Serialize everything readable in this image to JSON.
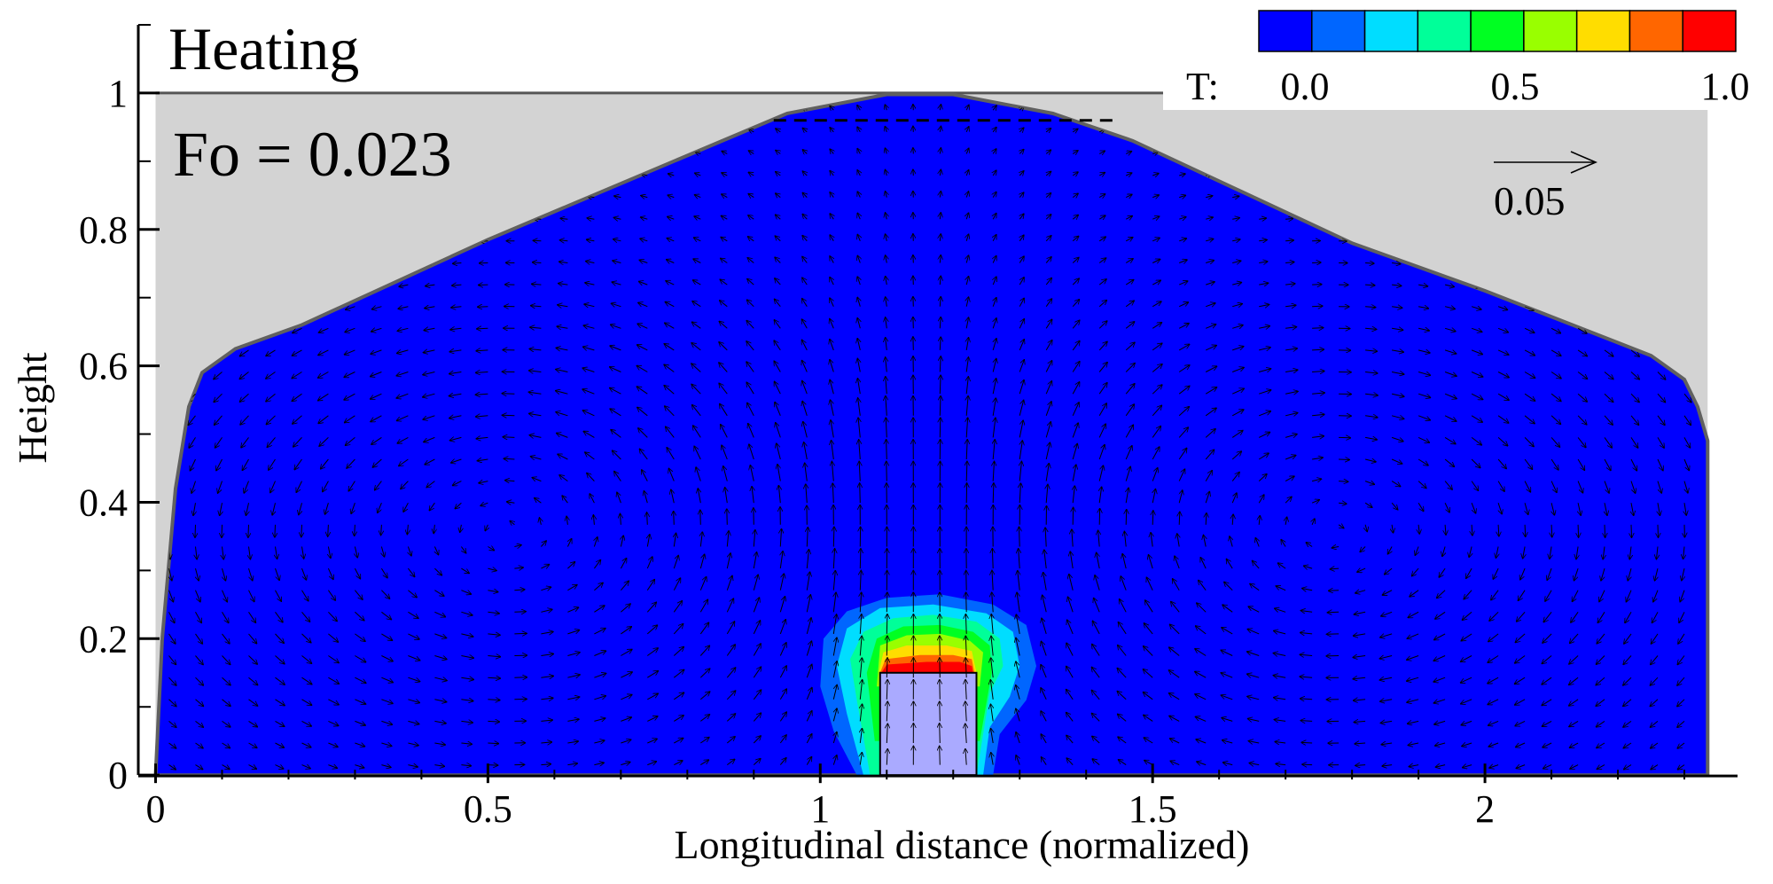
{
  "chart_data": {
    "type": "heatmap",
    "subtype": "temperature contour with velocity vectors",
    "title": "Heating",
    "annotation": "Fo = 0.023",
    "xlabel": "Longitudinal distance (normalized)",
    "ylabel": "Height",
    "xlim": [
      -0.01,
      2.38
    ],
    "ylim": [
      -0.005,
      1.1
    ],
    "x_ticks": [
      {
        "value": 0,
        "label": "0"
      },
      {
        "value": 0.5,
        "label": "0.5"
      },
      {
        "value": 1,
        "label": "1"
      },
      {
        "value": 1.5,
        "label": "1.5"
      },
      {
        "value": 2,
        "label": "2"
      }
    ],
    "y_ticks": [
      {
        "value": 0,
        "label": "0"
      },
      {
        "value": 0.2,
        "label": "0.2"
      },
      {
        "value": 0.4,
        "label": "0.4"
      },
      {
        "value": 0.6,
        "label": "0.6"
      },
      {
        "value": 0.8,
        "label": "0.8"
      },
      {
        "value": 1,
        "label": "1"
      }
    ],
    "grid": false,
    "colorbar": {
      "prefix": "T:",
      "min": 0.0,
      "max": 1.0,
      "tick_labels": [
        {
          "value": 0.0,
          "label": "0.0"
        },
        {
          "value": 0.5,
          "label": "0.5"
        },
        {
          "value": 1.0,
          "label": "1.0"
        }
      ],
      "colors": [
        "#0000ff",
        "#0066ff",
        "#00ddff",
        "#00ff99",
        "#00ff22",
        "#99ff00",
        "#ffdd00",
        "#ff6600",
        "#ff0000"
      ],
      "placement": "top-right"
    },
    "vector_reference": {
      "label": "0.05",
      "magnitude": 0.05
    },
    "domain_boundary": [
      [
        0.0,
        0.0
      ],
      [
        0.01,
        0.2
      ],
      [
        0.03,
        0.42
      ],
      [
        0.05,
        0.54
      ],
      [
        0.07,
        0.59
      ],
      [
        0.12,
        0.625
      ],
      [
        0.22,
        0.66
      ],
      [
        0.5,
        0.785
      ],
      [
        0.95,
        0.97
      ],
      [
        1.1,
        0.998
      ],
      [
        1.2,
        0.998
      ],
      [
        1.35,
        0.97
      ],
      [
        1.47,
        0.93
      ],
      [
        1.8,
        0.78
      ],
      [
        2.0,
        0.71
      ],
      [
        2.25,
        0.615
      ],
      [
        2.3,
        0.58
      ],
      [
        2.32,
        0.54
      ],
      [
        2.335,
        0.49
      ],
      [
        2.335,
        0.0
      ]
    ],
    "domain_top": 1.0,
    "top_dashed_line": {
      "x_start": 0.93,
      "x_end": 1.44,
      "y": 0.96
    },
    "heater": {
      "x0": 1.09,
      "x1": 1.235,
      "y0": 0,
      "y1": 0.15,
      "color": "#aaaaff"
    },
    "temperature_levels": [
      {
        "level": 0.11,
        "color": "#0066ff",
        "outline": [
          [
            1.055,
            0
          ],
          [
            1.02,
            0.065
          ],
          [
            1.0,
            0.13
          ],
          [
            1.005,
            0.2
          ],
          [
            1.04,
            0.24
          ],
          [
            1.1,
            0.26
          ],
          [
            1.18,
            0.265
          ],
          [
            1.26,
            0.25
          ],
          [
            1.31,
            0.22
          ],
          [
            1.325,
            0.16
          ],
          [
            1.31,
            0.11
          ],
          [
            1.27,
            0.06
          ],
          [
            1.26,
            0
          ]
        ]
      },
      {
        "level": 0.22,
        "color": "#00ddff",
        "outline": [
          [
            1.065,
            0
          ],
          [
            1.04,
            0.09
          ],
          [
            1.025,
            0.16
          ],
          [
            1.04,
            0.215
          ],
          [
            1.09,
            0.245
          ],
          [
            1.17,
            0.25
          ],
          [
            1.25,
            0.237
          ],
          [
            1.29,
            0.21
          ],
          [
            1.3,
            0.16
          ],
          [
            1.285,
            0.115
          ],
          [
            1.255,
            0.07
          ],
          [
            1.245,
            0
          ]
        ]
      },
      {
        "level": 0.33,
        "color": "#00ff99",
        "outline": [
          [
            1.075,
            0
          ],
          [
            1.055,
            0.11
          ],
          [
            1.045,
            0.17
          ],
          [
            1.065,
            0.21
          ],
          [
            1.11,
            0.23
          ],
          [
            1.17,
            0.235
          ],
          [
            1.235,
            0.225
          ],
          [
            1.27,
            0.2
          ],
          [
            1.275,
            0.16
          ],
          [
            1.255,
            0.12
          ],
          [
            1.235,
            0
          ]
        ]
      },
      {
        "level": 0.44,
        "color": "#00ff22",
        "outline": [
          [
            1.082,
            0.05
          ],
          [
            1.07,
            0.15
          ],
          [
            1.085,
            0.2
          ],
          [
            1.125,
            0.218
          ],
          [
            1.18,
            0.22
          ],
          [
            1.23,
            0.21
          ],
          [
            1.255,
            0.19
          ],
          [
            1.258,
            0.15
          ],
          [
            1.24,
            0.05
          ]
        ]
      },
      {
        "level": 0.55,
        "color": "#99ff00",
        "outline": [
          [
            1.085,
            0.13
          ],
          [
            1.09,
            0.19
          ],
          [
            1.13,
            0.205
          ],
          [
            1.18,
            0.207
          ],
          [
            1.225,
            0.197
          ],
          [
            1.245,
            0.18
          ],
          [
            1.24,
            0.13
          ]
        ]
      },
      {
        "level": 0.66,
        "color": "#ffdd00",
        "outline": [
          [
            1.088,
            0.15
          ],
          [
            1.095,
            0.18
          ],
          [
            1.13,
            0.19
          ],
          [
            1.19,
            0.19
          ],
          [
            1.228,
            0.182
          ],
          [
            1.235,
            0.15
          ]
        ]
      },
      {
        "level": 0.77,
        "color": "#ff6600",
        "outline": [
          [
            1.09,
            0.15
          ],
          [
            1.098,
            0.17
          ],
          [
            1.15,
            0.176
          ],
          [
            1.2,
            0.176
          ],
          [
            1.228,
            0.17
          ],
          [
            1.232,
            0.15
          ]
        ]
      },
      {
        "level": 0.88,
        "color": "#ff0000",
        "outline": [
          [
            1.092,
            0.15
          ],
          [
            1.1,
            0.162
          ],
          [
            1.16,
            0.166
          ],
          [
            1.21,
            0.166
          ],
          [
            1.228,
            0.16
          ],
          [
            1.23,
            0.15
          ]
        ]
      }
    ]
  }
}
